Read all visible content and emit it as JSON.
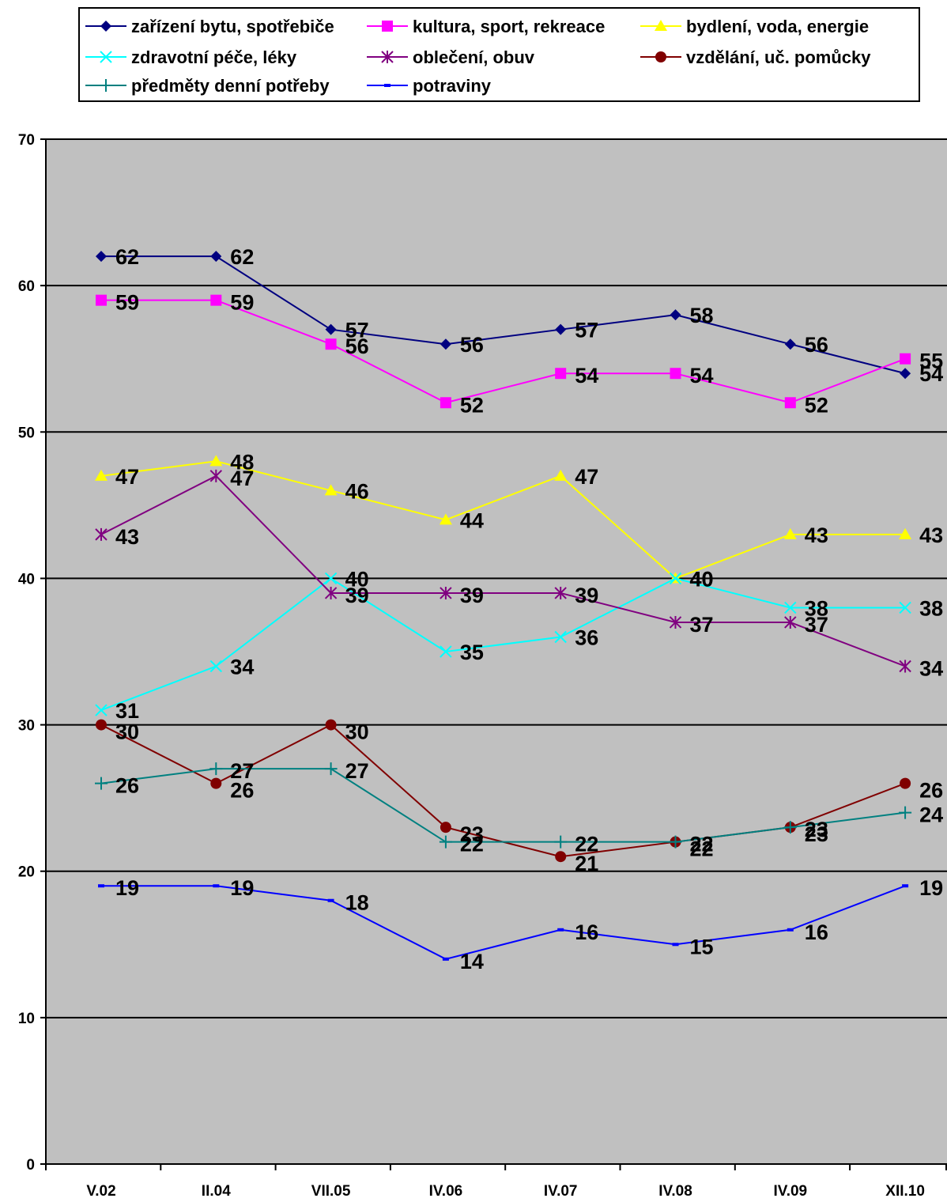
{
  "chart_data": {
    "type": "line",
    "title": "",
    "xlabel": "",
    "ylabel": "",
    "categories": [
      "V.02",
      "II.04",
      "VII.05",
      "IV.06",
      "IV.07",
      "IV.08",
      "IV.09",
      "XII.10"
    ],
    "ylim": [
      0,
      70
    ],
    "yticks": [
      "0",
      "10",
      "20",
      "30",
      "40",
      "50",
      "60",
      "70"
    ],
    "grid": true,
    "legend_position": "top",
    "plot_background": "#c0c0c0",
    "series": [
      {
        "name": "zařízení bytu, spotřebiče",
        "color": "#000080",
        "marker": "diamond",
        "values": [
          62,
          62,
          57,
          56,
          57,
          58,
          56,
          54
        ],
        "labels": [
          "62",
          "62",
          "57",
          "56",
          "57",
          "58",
          "56",
          "54"
        ]
      },
      {
        "name": "kultura, sport, rekreace",
        "color": "#ff00ff",
        "marker": "square",
        "values": [
          59,
          59,
          56,
          52,
          54,
          54,
          52,
          55
        ],
        "labels": [
          "59",
          "59",
          "56",
          "52",
          "54",
          "54",
          "52",
          "55"
        ]
      },
      {
        "name": "bydlení, voda, energie",
        "color": "#ffff00",
        "marker": "triangle",
        "values": [
          47,
          48,
          46,
          44,
          47,
          40,
          43,
          43
        ],
        "labels": [
          "47",
          "48",
          "46",
          "44",
          "47",
          "40",
          "43",
          "43"
        ]
      },
      {
        "name": "zdravotní péče, léky",
        "color": "#00ffff",
        "marker": "x",
        "values": [
          31,
          34,
          40,
          35,
          36,
          40,
          38,
          38
        ],
        "labels": [
          "31",
          "34",
          "40",
          "35",
          "36",
          "40",
          "38",
          "38"
        ]
      },
      {
        "name": "oblečení, obuv",
        "color": "#800080",
        "marker": "star",
        "values": [
          43,
          47,
          39,
          39,
          39,
          37,
          37,
          34
        ],
        "labels": [
          "43",
          "47",
          "39",
          "39",
          "39",
          "37",
          "37",
          "34"
        ]
      },
      {
        "name": "vzdělání, uč. pomůcky",
        "color": "#800000",
        "marker": "circle",
        "values": [
          30,
          26,
          30,
          23,
          21,
          22,
          23,
          26
        ],
        "labels": [
          "30",
          "26",
          "30",
          "23",
          "21",
          "22",
          "23",
          "26"
        ]
      },
      {
        "name": "předměty denní potřeby",
        "color": "#008080",
        "marker": "plus",
        "values": [
          26,
          27,
          27,
          22,
          22,
          22,
          23,
          24
        ],
        "labels": [
          "26",
          "27",
          "27",
          "22",
          "22",
          "22",
          "23",
          "24"
        ]
      },
      {
        "name": "potraviny",
        "color": "#0000ff",
        "marker": "dash",
        "values": [
          19,
          19,
          18,
          14,
          16,
          15,
          16,
          19
        ],
        "labels": [
          "19",
          "19",
          "18",
          "14",
          "16",
          "15",
          "16",
          "19"
        ]
      }
    ]
  }
}
